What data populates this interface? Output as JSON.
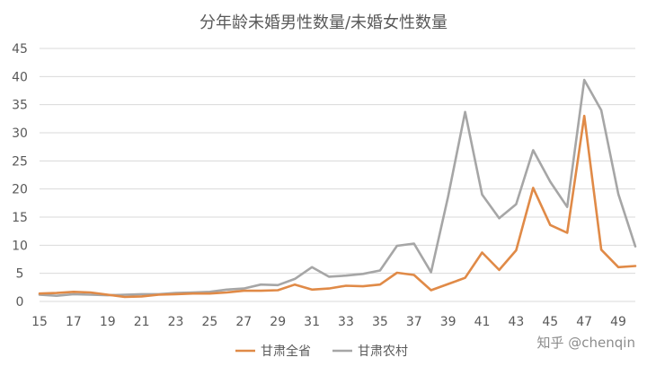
{
  "chart_data": {
    "type": "line",
    "title": "分年龄未婚男性数量/未婚女性数量",
    "xlabel": "",
    "ylabel": "",
    "x": [
      15,
      16,
      17,
      18,
      19,
      20,
      21,
      22,
      23,
      24,
      25,
      26,
      27,
      28,
      29,
      30,
      31,
      32,
      33,
      34,
      35,
      36,
      37,
      38,
      39,
      40,
      41,
      42,
      43,
      44,
      45,
      46,
      47,
      48,
      49,
      50
    ],
    "xticks": [
      15,
      17,
      19,
      21,
      23,
      25,
      27,
      29,
      31,
      33,
      35,
      37,
      39,
      41,
      43,
      45,
      47,
      49
    ],
    "ylim": [
      0,
      45
    ],
    "yticks": [
      0,
      5,
      10,
      15,
      20,
      25,
      30,
      35,
      40,
      45
    ],
    "grid": true,
    "legend_position": "bottom",
    "series": [
      {
        "name": "甘肃全省",
        "color": "#E08A47",
        "values": [
          1.4,
          1.5,
          1.7,
          1.6,
          1.2,
          0.8,
          0.9,
          1.2,
          1.3,
          1.4,
          1.4,
          1.6,
          1.9,
          1.9,
          2.0,
          3.0,
          2.1,
          2.3,
          2.8,
          2.7,
          3.0,
          5.1,
          4.7,
          2.0,
          3.1,
          4.2,
          8.7,
          5.6,
          9.1,
          20.2,
          13.6,
          12.2,
          33.0,
          9.2,
          6.1,
          6.3
        ]
      },
      {
        "name": "甘肃农村",
        "color": "#A6A6A6",
        "values": [
          1.2,
          1.0,
          1.3,
          1.2,
          1.1,
          1.2,
          1.3,
          1.3,
          1.5,
          1.6,
          1.7,
          2.1,
          2.3,
          3.0,
          2.9,
          4.0,
          6.1,
          4.4,
          4.6,
          4.9,
          5.5,
          9.9,
          10.3,
          5.2,
          18.6,
          33.7,
          19.0,
          14.8,
          17.3,
          26.9,
          21.3,
          16.8,
          39.4,
          34.0,
          19.1,
          9.8
        ]
      }
    ]
  },
  "watermark": {
    "text": "知乎 @chenqin"
  }
}
